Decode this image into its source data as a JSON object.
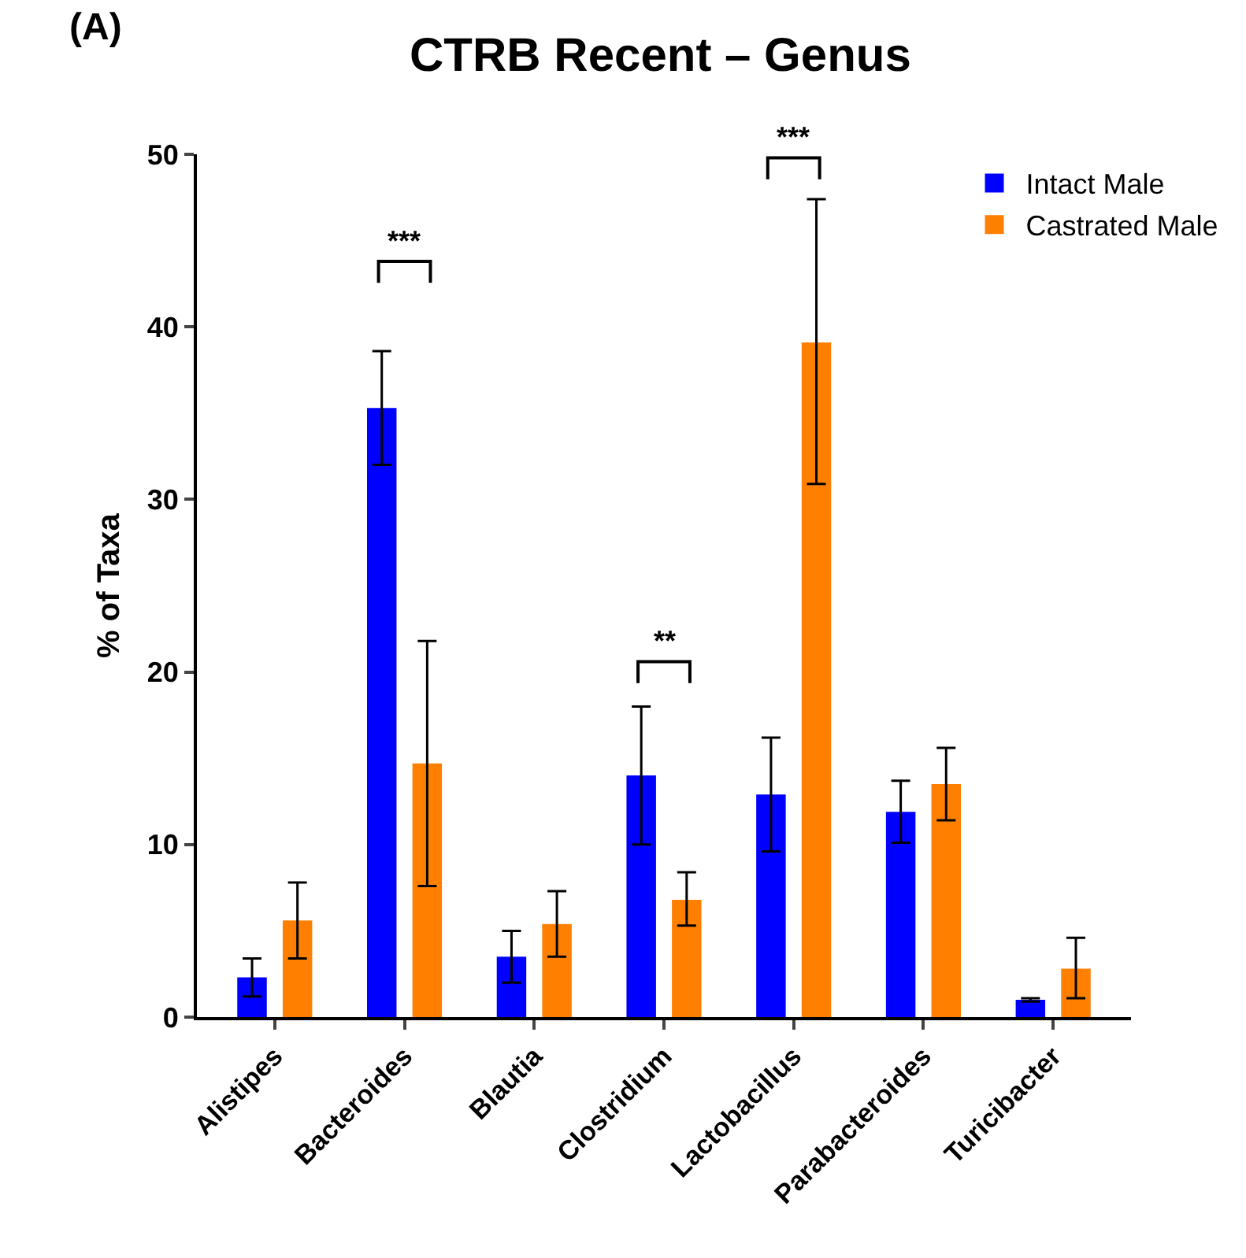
{
  "chart_data": {
    "type": "bar",
    "title": "CTRB Recent – Genus",
    "ylabel": "% of Taxa",
    "categories": [
      "Alistipes",
      "Bacteroides",
      "Blautia",
      "Clostridium",
      "Lactobacillus",
      "Parabacteroides",
      "Turicibacter"
    ],
    "series": [
      {
        "name": "Intact Male",
        "color": "#0000ff",
        "values": [
          2.3,
          35.3,
          3.5,
          14.0,
          12.9,
          11.9,
          1.0
        ],
        "errors": [
          [
            1.2,
            3.4
          ],
          [
            32.0,
            38.6
          ],
          [
            2.0,
            5.0
          ],
          [
            10.0,
            18.0
          ],
          [
            9.6,
            16.2
          ],
          [
            10.1,
            13.7
          ],
          [
            0.9,
            1.1
          ]
        ]
      },
      {
        "name": "Castrated Male",
        "color": "#ff8000",
        "values": [
          5.6,
          14.7,
          5.4,
          6.8,
          39.1,
          13.5,
          2.8
        ],
        "errors": [
          [
            3.4,
            7.8
          ],
          [
            7.6,
            21.8
          ],
          [
            3.5,
            7.3
          ],
          [
            5.3,
            8.4
          ],
          [
            30.9,
            47.4
          ],
          [
            11.4,
            15.6
          ],
          [
            1.1,
            4.6
          ]
        ]
      }
    ],
    "ylim": [
      0,
      50
    ],
    "yticks": [
      0,
      10,
      20,
      30,
      40,
      50
    ],
    "grid": false,
    "legend": "top right",
    "annotations": [
      "(A)",
      "***",
      "**",
      "***"
    ]
  }
}
